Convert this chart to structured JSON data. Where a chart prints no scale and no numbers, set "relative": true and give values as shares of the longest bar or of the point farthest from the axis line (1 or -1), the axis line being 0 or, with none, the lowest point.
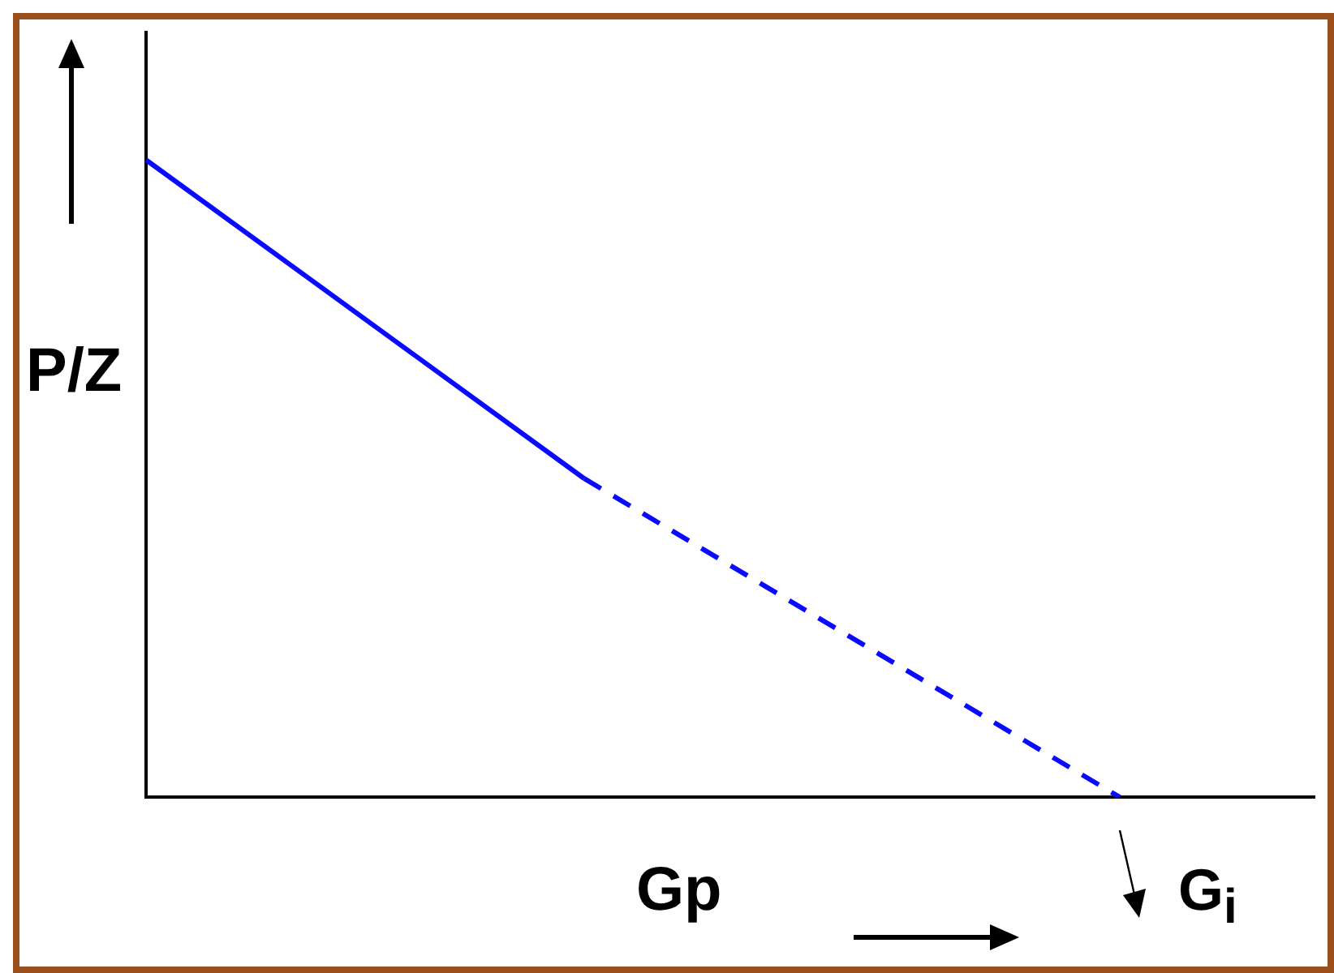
{
  "chart_data": {
    "type": "line",
    "relative": true,
    "xlabel": "Gp",
    "ylabel": "P/Z",
    "categories": [
      null,
      null,
      null,
      null,
      null,
      null,
      null,
      null,
      null,
      null,
      null,
      null,
      null,
      null,
      null,
      null,
      null,
      null,
      null,
      null,
      null,
      null,
      null,
      null,
      null
    ],
    "series": [
      {
        "color": "#0a0aff",
        "line_style": "solid",
        "values": [
          1,
          null,
          null,
          null,
          null,
          null,
          null,
          null,
          null,
          0.5,
          null,
          null,
          null,
          null,
          null,
          null,
          null,
          null,
          null,
          null,
          null,
          null,
          null,
          null,
          null
        ]
      },
      {
        "color": "#0a0aff",
        "line_style": "dashed",
        "values": [
          null,
          null,
          null,
          null,
          null,
          null,
          null,
          null,
          null,
          0.5,
          null,
          null,
          null,
          null,
          null,
          null,
          null,
          null,
          null,
          null,
          0,
          null,
          null,
          null,
          null
        ]
      }
    ],
    "marker": "none",
    "annotations": [
      "G$_{i}$"
    ]
  }
}
